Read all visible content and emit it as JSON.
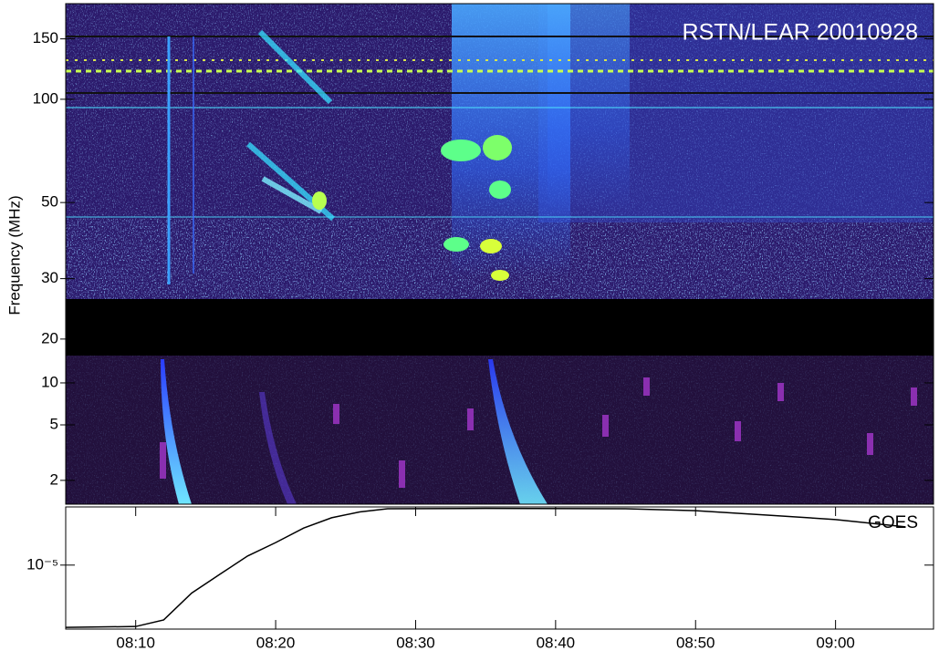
{
  "chart_data": [
    {
      "type": "spectrogram",
      "annotation": "RSTN/LEAR 20010928",
      "y_label": "Frequency (MHz)",
      "log_scale": true,
      "xlim": [
        "08:05",
        "09:07"
      ],
      "ylim": [
        17.9,
        190
      ],
      "yticks": [
        150,
        100,
        50,
        30,
        20
      ]
    },
    {
      "type": "spectrogram",
      "log_scale": true,
      "xlim": [
        "08:05",
        "09:07"
      ],
      "ylim": [
        1.35,
        15.7
      ],
      "yticks": [
        10,
        5,
        2
      ]
    },
    {
      "type": "line",
      "annotation": "GOES",
      "log_scale": true,
      "color": "#000000",
      "xlim": [
        "08:05",
        "09:07"
      ],
      "xticks": [
        "08:10",
        "08:20",
        "08:30",
        "08:40",
        "08:50",
        "09:00"
      ],
      "ylim": [
        4e-06,
        2.3e-05
      ],
      "yticks": [
        {
          "value": 1e-05,
          "label": "10⁻⁵"
        }
      ],
      "x": [
        "08:05",
        "08:10",
        "08:12",
        "08:14",
        "08:16",
        "08:18",
        "08:20",
        "08:22",
        "08:24",
        "08:26",
        "08:28",
        "08:35",
        "08:45",
        "08:50",
        "08:55",
        "09:00",
        "09:05"
      ],
      "values": [
        4.1e-06,
        4.15e-06,
        4.56e-06,
        6.7e-06,
        8.75e-06,
        1.14e-05,
        1.38e-05,
        1.7e-05,
        1.97e-05,
        2.14e-05,
        2.24e-05,
        2.25e-05,
        2.24e-05,
        2.18e-05,
        2.05e-05,
        1.92e-05,
        1.73e-05
      ]
    }
  ]
}
